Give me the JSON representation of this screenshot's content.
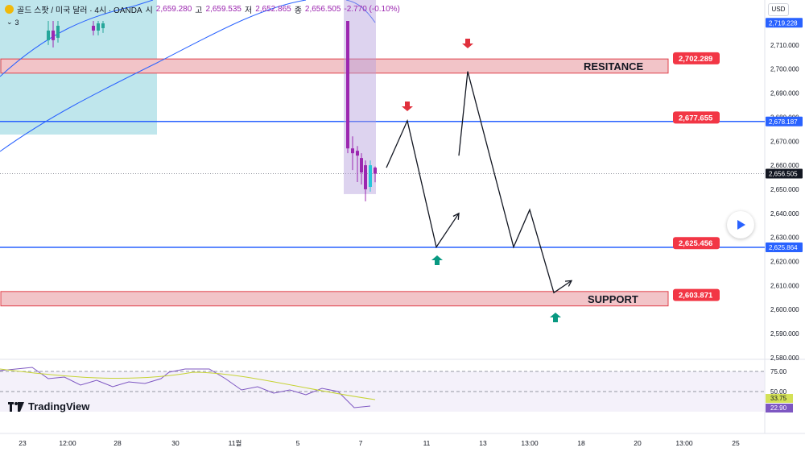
{
  "header": {
    "symbol": "골드 스팟 / 미국 달러 · 4시 · OANDA",
    "open_label": "시",
    "open": "2,659.280",
    "high_label": "고",
    "high": "2,659.535",
    "low_label": "저",
    "low": "2,652.865",
    "close_label": "종",
    "close": "2,656.505",
    "change": "-2.770 (-0.10%)",
    "indicator_count": "3"
  },
  "currency": "USD",
  "chart_data": {
    "type": "line",
    "title": "",
    "price_axis": {
      "ylim": [
        2576,
        2726
      ],
      "ticks": [
        "2,720.000",
        "2,710.000",
        "2,700.000",
        "2,690.000",
        "2,680.000",
        "2,670.000",
        "2,660.000",
        "2,650.000",
        "2,640.000",
        "2,630.000",
        "2,620.000",
        "2,610.000",
        "2,600.000",
        "2,590.000",
        "2,580.000"
      ],
      "tick_values": [
        2720,
        2710,
        2700,
        2690,
        2680,
        2670,
        2660,
        2650,
        2640,
        2630,
        2620,
        2610,
        2600,
        2590,
        2580
      ],
      "labels": [
        {
          "text": "2,719.228",
          "value": 2719.228,
          "color": "#2962ff"
        },
        {
          "text": "2,678.187",
          "value": 2678.187,
          "color": "#2962ff"
        },
        {
          "text": "2,656.505",
          "value": 2656.505,
          "color": "#131722"
        },
        {
          "text": "2,625.864",
          "value": 2625.864,
          "color": "#2962ff"
        }
      ]
    },
    "time_axis": {
      "labels": [
        "23",
        "12:00",
        "28",
        "30",
        "11월",
        "5",
        "7",
        "11",
        "13",
        "13:00",
        "18",
        "20",
        "13:00",
        "25"
      ]
    },
    "zones": [
      {
        "name": "RESITANCE",
        "low": 2698.3,
        "high": 2704.2
      },
      {
        "name": "SUPPORT",
        "low": 2601.5,
        "high": 2607.5
      }
    ],
    "horizontal_lines": [
      2678.187,
      2625.864
    ],
    "price_tags": [
      {
        "text": "2,702.289",
        "value": 2702.289
      },
      {
        "text": "2,677.655",
        "value": 2677.655
      },
      {
        "text": "2,625.456",
        "value": 2625.456
      },
      {
        "text": "2,603.871",
        "value": 2603.871
      }
    ],
    "projection_path": [
      2659,
      2678.5,
      2626,
      2640,
      2664,
      2699,
      2626,
      2641.5,
      2607,
      2612
    ],
    "rsi": {
      "levels": [
        "75.00",
        "50.00"
      ],
      "level_values": [
        75,
        50
      ],
      "current": "22.90",
      "ma": "33.75"
    }
  },
  "colors": {
    "zone_fill": "#f2c4c8",
    "zone_border": "#e0404a",
    "hline": "#2962ff",
    "tag_red": "#f23645",
    "arrow_down": "#e0303c",
    "arrow_up": "#089981",
    "ma_line": "#2962ff",
    "highlight_box": "#aadde6"
  },
  "branding": "TradingView"
}
